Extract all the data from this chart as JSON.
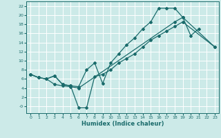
{
  "xlabel": "Humidex (Indice chaleur)",
  "bg_color": "#cceae8",
  "line_color": "#1a6b6b",
  "grid_color": "#ffffff",
  "ylim": [
    -1.5,
    23
  ],
  "xlim": [
    -0.5,
    23.5
  ],
  "yticks": [
    0,
    2,
    4,
    6,
    8,
    10,
    12,
    14,
    16,
    18,
    20,
    22
  ],
  "xticks": [
    0,
    1,
    2,
    3,
    4,
    5,
    6,
    7,
    8,
    9,
    10,
    11,
    12,
    13,
    14,
    15,
    16,
    17,
    18,
    19,
    20,
    21,
    22,
    23
  ],
  "ytick_labels": [
    "-0",
    "2",
    "4",
    "6",
    "8",
    "10",
    "12",
    "14",
    "16",
    "18",
    "20",
    "22"
  ],
  "line1_x": [
    0,
    1,
    2,
    3,
    4,
    5,
    6,
    7,
    8,
    9,
    10,
    11,
    12,
    13,
    14,
    15,
    16,
    17,
    18,
    19,
    20,
    21
  ],
  "line1_y": [
    7.0,
    6.3,
    6.0,
    6.7,
    4.8,
    4.5,
    4.3,
    8.0,
    9.5,
    5.0,
    9.5,
    11.5,
    13.5,
    15.0,
    17.0,
    18.5,
    21.5,
    21.5,
    21.5,
    19.5,
    15.5,
    17.0
  ],
  "line2_x": [
    0,
    1,
    2,
    3,
    4,
    5,
    6,
    18,
    19,
    23
  ],
  "line2_y": [
    7.0,
    6.3,
    6.0,
    4.8,
    4.5,
    4.3,
    4.0,
    18.5,
    19.5,
    13.0
  ],
  "line3_x": [
    0,
    1,
    2,
    3,
    4,
    5,
    6,
    7,
    8,
    9,
    10,
    11,
    12,
    13,
    14,
    15,
    16,
    17,
    18,
    19,
    23
  ],
  "line3_y": [
    7.0,
    6.3,
    6.0,
    6.7,
    4.8,
    4.5,
    -0.3,
    -0.3,
    6.5,
    7.0,
    8.0,
    9.5,
    10.5,
    11.5,
    13.0,
    14.5,
    15.5,
    16.5,
    17.5,
    18.5,
    13.0
  ]
}
